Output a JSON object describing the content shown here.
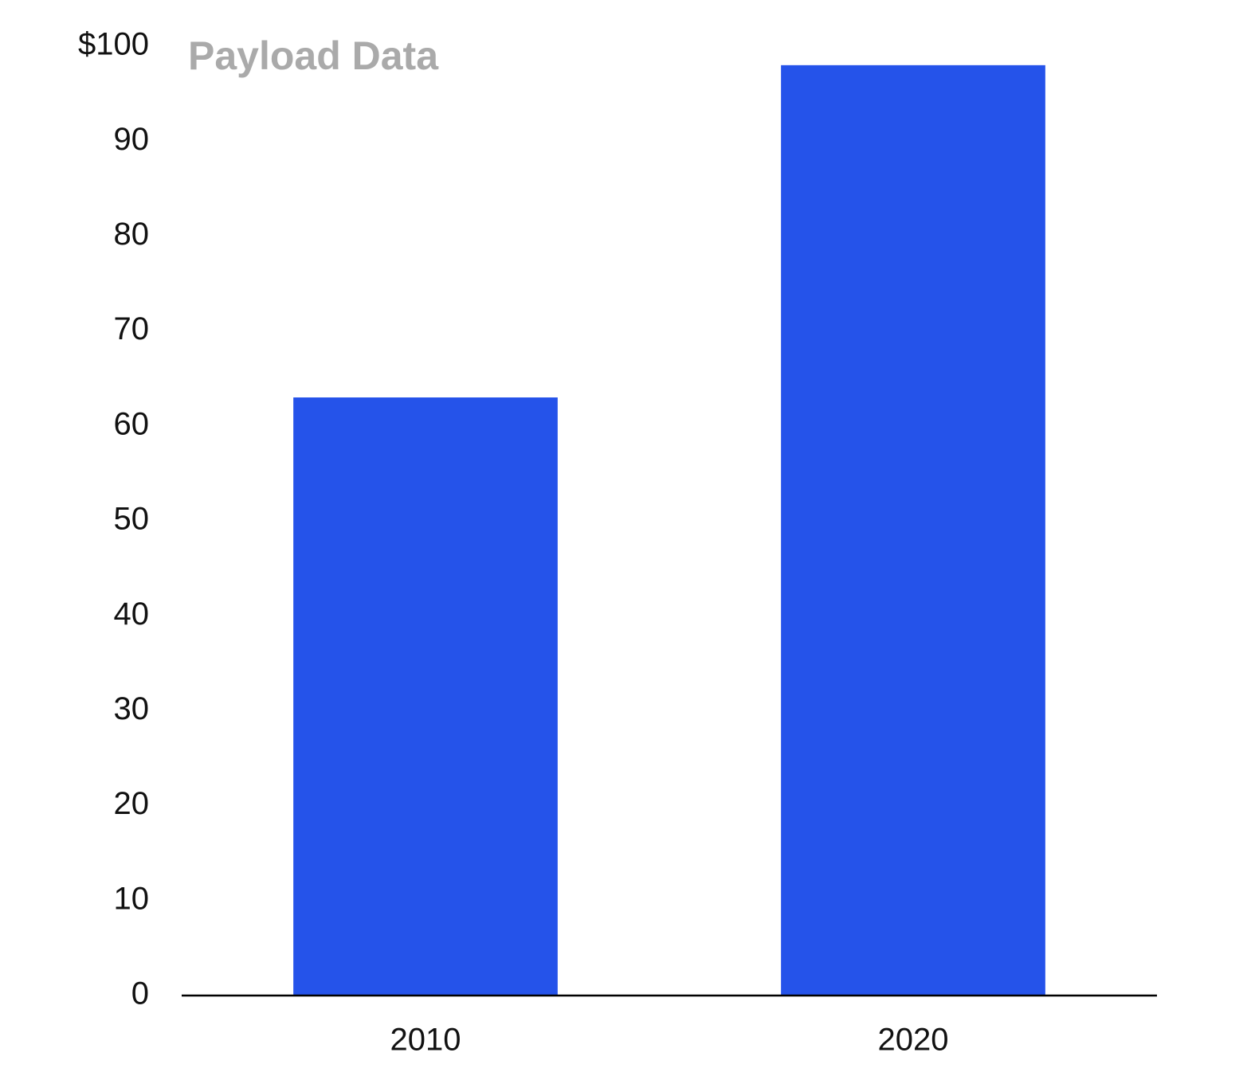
{
  "chart_data": {
    "type": "bar",
    "title": "Payload Data",
    "categories": [
      "2010",
      "2020"
    ],
    "values": [
      63,
      98
    ],
    "color": "#2553ea",
    "ylim": [
      0,
      100
    ],
    "yticks": [
      0,
      10,
      20,
      30,
      40,
      50,
      60,
      70,
      80,
      90,
      {
        "value": 100,
        "label": "$100"
      }
    ],
    "grid": false
  }
}
